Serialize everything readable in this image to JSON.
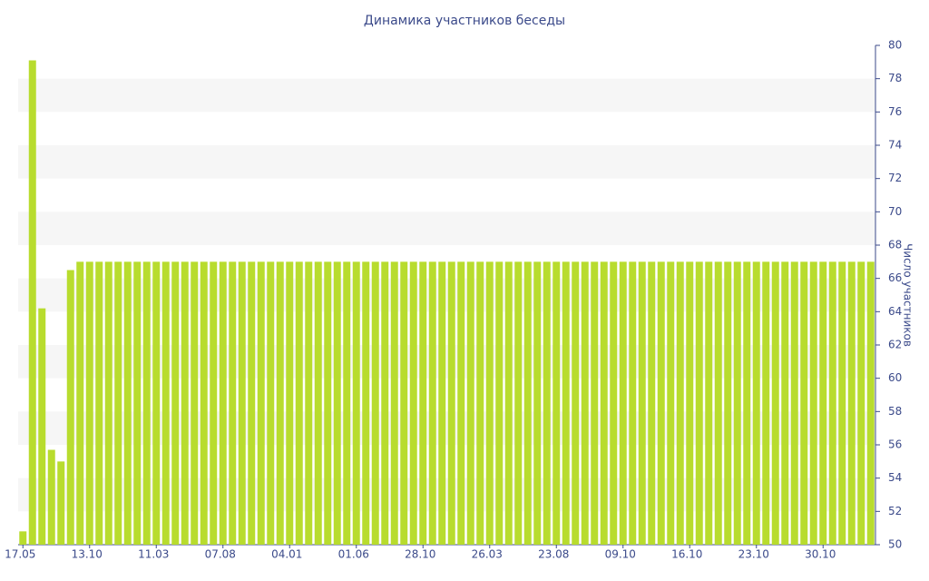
{
  "chart_data": {
    "type": "bar",
    "title": "Динамика участников беседы",
    "y_axis_label": "Число участников",
    "categories": [
      "17.05",
      null,
      null,
      null,
      null,
      null,
      null,
      "13.10",
      null,
      null,
      null,
      null,
      null,
      null,
      "11.03",
      null,
      null,
      null,
      null,
      null,
      null,
      "07.08",
      null,
      null,
      null,
      null,
      null,
      null,
      "04.01",
      null,
      null,
      null,
      null,
      null,
      null,
      "01.06",
      null,
      null,
      null,
      null,
      null,
      null,
      "28.10",
      null,
      null,
      null,
      null,
      null,
      null,
      "26.03",
      null,
      null,
      null,
      null,
      null,
      null,
      "23.08",
      null,
      null,
      null,
      null,
      null,
      null,
      "09.10",
      null,
      null,
      null,
      null,
      null,
      null,
      "16.10",
      null,
      null,
      null,
      null,
      null,
      null,
      "23.10",
      null,
      null,
      null,
      null,
      null,
      null,
      "30.10",
      null,
      null,
      null,
      null,
      null
    ],
    "values": [
      50.8,
      79.1,
      64.2,
      55.7,
      55,
      66.5,
      67,
      67,
      67,
      67,
      67,
      67,
      67,
      67,
      67,
      67,
      67,
      67,
      67,
      67,
      67,
      67,
      67,
      67,
      67,
      67,
      67,
      67,
      67,
      67,
      67,
      67,
      67,
      67,
      67,
      67,
      67,
      67,
      67,
      67,
      67,
      67,
      67,
      67,
      67,
      67,
      67,
      67,
      67,
      67,
      67,
      67,
      67,
      67,
      67,
      67,
      67,
      67,
      67,
      67,
      67,
      67,
      67,
      67,
      67,
      67,
      67,
      67,
      67,
      67,
      67,
      67,
      67,
      67,
      67,
      67,
      67,
      67,
      67,
      67,
      67,
      67,
      67,
      67,
      67,
      67,
      67,
      67,
      67,
      67
    ],
    "color": "#b8dc2e",
    "ylim": [
      50,
      80
    ],
    "yticks": [
      50,
      52,
      54,
      56,
      58,
      60,
      62,
      64,
      66,
      68,
      70,
      72,
      74,
      76,
      78,
      80
    ],
    "grid_bands": true
  }
}
